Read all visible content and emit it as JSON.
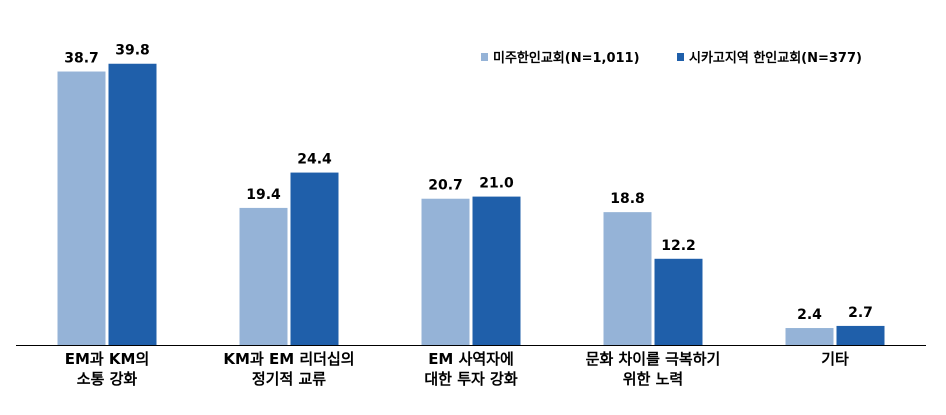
{
  "chart_data": {
    "type": "bar",
    "categories": [
      [
        "EM과 KM의",
        "소통 강화"
      ],
      [
        "KM과 EM 리더십의",
        "정기적 교류"
      ],
      [
        "EM 사역자에",
        "대한 투자 강화"
      ],
      [
        "문화 차이를 극복하기",
        "위한 노력"
      ],
      [
        "기타"
      ]
    ],
    "series": [
      {
        "name": "미주한인교회(N=1,011)",
        "color": "#95b3d7",
        "values": [
          38.7,
          19.4,
          20.7,
          18.8,
          2.4
        ]
      },
      {
        "name": "시카고지역 한인교회(N=377)",
        "color": "#1f5faa",
        "values": [
          39.8,
          24.4,
          21.0,
          12.2,
          2.7
        ]
      }
    ],
    "title": "",
    "xlabel": "",
    "ylabel": "",
    "ylim": [
      0,
      45
    ],
    "grid": false,
    "legend": "top-right",
    "value_decimals": 1
  }
}
